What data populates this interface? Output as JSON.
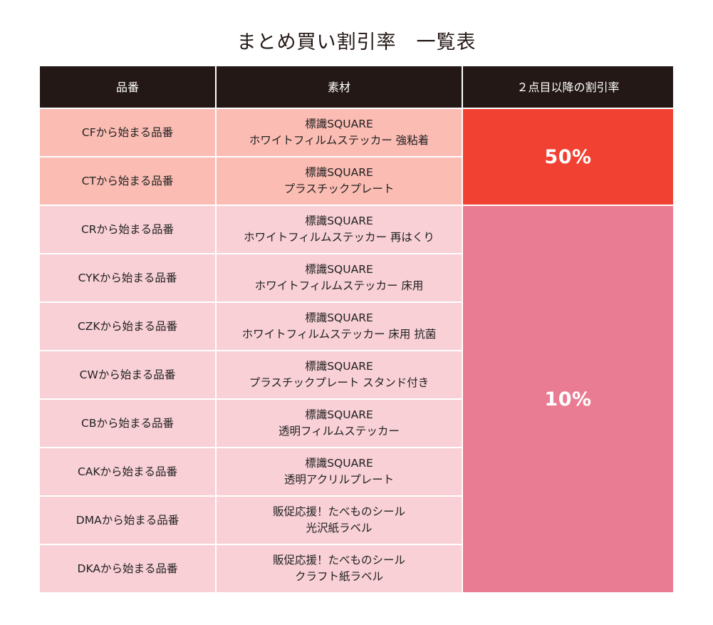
{
  "title": "まとめ買い割引率　一覧表",
  "headers": {
    "code": "品番",
    "material": "素材",
    "rate": "２点目以降の割引率"
  },
  "rows": [
    {
      "code": "CFから始まる品番",
      "material1": "標識SQUARE",
      "material2": "ホワイトフィルムステッカー 強粘着"
    },
    {
      "code": "CTから始まる品番",
      "material1": "標識SQUARE",
      "material2": "プラスチックプレート"
    },
    {
      "code": "CRから始まる品番",
      "material1": "標識SQUARE",
      "material2": "ホワイトフィルムステッカー 再はくり"
    },
    {
      "code": "CYKから始まる品番",
      "material1": "標識SQUARE",
      "material2": "ホワイトフィルムステッカー 床用"
    },
    {
      "code": "CZKから始まる品番",
      "material1": "標識SQUARE",
      "material2": "ホワイトフィルムステッカー 床用 抗菌"
    },
    {
      "code": "CWから始まる品番",
      "material1": "標識SQUARE",
      "material2": "プラスチックプレート スタンド付き"
    },
    {
      "code": "CBから始まる品番",
      "material1": "標識SQUARE",
      "material2": "透明フィルムステッカー"
    },
    {
      "code": "CAKから始まる品番",
      "material1": "標識SQUARE",
      "material2": "透明アクリルプレート"
    },
    {
      "code": "DMAから始まる品番",
      "material1": "販促応援！たべものシール",
      "material2": "光沢紙ラベル"
    },
    {
      "code": "DKAから始まる品番",
      "material1": "販促応援！たべものシール",
      "material2": "クラフト紙ラベル"
    }
  ],
  "rates": {
    "high": "50%",
    "low": "10%"
  },
  "colors": {
    "header_bg": "#231815",
    "row_high_bg": "#fbbcb3",
    "row_low_bg": "#f8d0d6",
    "rate_high_bg": "#f04132",
    "rate_low_bg": "#e97c93"
  }
}
